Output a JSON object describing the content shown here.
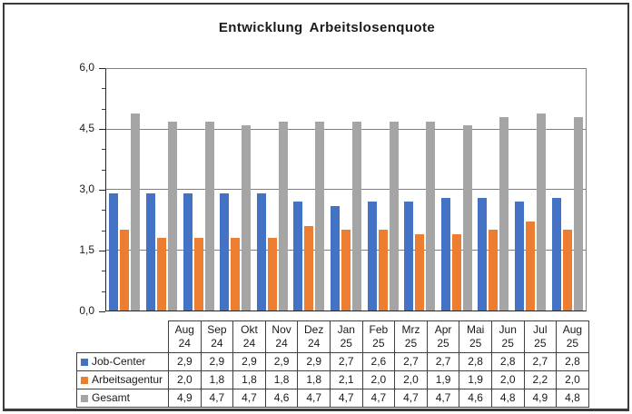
{
  "chart_data": {
    "type": "bar",
    "title": "Entwicklung Arbeitslosenquote",
    "categories": [
      "Aug 24",
      "Sep 24",
      "Okt 24",
      "Nov 24",
      "Dez 24",
      "Jan 25",
      "Feb 25",
      "Mrz 25",
      "Apr 25",
      "Mai 25",
      "Jun 25",
      "Jul 25",
      "Aug 25"
    ],
    "series": [
      {
        "name": "Job-Center",
        "color": "#4472C4",
        "values": [
          2.9,
          2.9,
          2.9,
          2.9,
          2.9,
          2.7,
          2.6,
          2.7,
          2.7,
          2.8,
          2.8,
          2.7,
          2.8
        ]
      },
      {
        "name": "Arbeitsagentur",
        "color": "#ED7D31",
        "values": [
          2.0,
          1.8,
          1.8,
          1.8,
          1.8,
          2.1,
          2.0,
          2.0,
          1.9,
          1.9,
          2.0,
          2.2,
          2.0
        ]
      },
      {
        "name": "Gesamt",
        "color": "#A5A5A5",
        "values": [
          4.9,
          4.7,
          4.7,
          4.6,
          4.7,
          4.7,
          4.7,
          4.7,
          4.7,
          4.6,
          4.8,
          4.9,
          4.8
        ]
      }
    ],
    "ylabel": "",
    "xlabel": "",
    "ylim": [
      0,
      6
    ],
    "yticks": [
      0,
      1.5,
      3,
      4.5,
      6
    ],
    "minor_tick_step": 0.5,
    "decimal_separator": ",",
    "grid": "horizontal",
    "legend_position": "data-table-left",
    "data_table_shown": true
  },
  "colors": {
    "frame_border": "#3b3b3b",
    "axis": "#262626",
    "gridline": "#7f7f7f",
    "table_border": "#404040"
  }
}
